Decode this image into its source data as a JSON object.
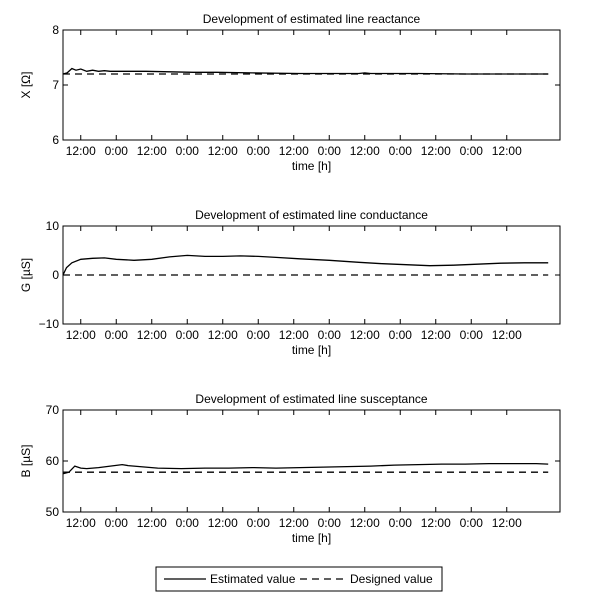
{
  "chart_data": [
    {
      "type": "line",
      "title": "Development of estimated line reactance",
      "xlabel": "time [h]",
      "ylabel": "X [Ω]",
      "ylim": [
        6,
        8
      ],
      "yticks": [
        "6",
        "7",
        "8"
      ],
      "xlim": [
        0,
        84
      ],
      "xticks": [
        {
          "x": 3,
          "label": "12:00"
        },
        {
          "x": 9,
          "label": "0:00"
        },
        {
          "x": 15,
          "label": "12:00"
        },
        {
          "x": 21,
          "label": "0:00"
        },
        {
          "x": 27,
          "label": "12:00"
        },
        {
          "x": 33,
          "label": "0:00"
        },
        {
          "x": 39,
          "label": "12:00"
        },
        {
          "x": 45,
          "label": "0:00"
        },
        {
          "x": 51,
          "label": "12:00"
        },
        {
          "x": 57,
          "label": "0:00"
        },
        {
          "x": 63,
          "label": "12:00"
        },
        {
          "x": 69,
          "label": "0:00"
        },
        {
          "x": 75,
          "label": "12:00"
        }
      ],
      "series": [
        {
          "name": "Estimated value",
          "style": "solid",
          "points": [
            [
              0,
              7.2
            ],
            [
              0.7,
              7.22
            ],
            [
              1.5,
              7.3
            ],
            [
              2.2,
              7.27
            ],
            [
              3,
              7.29
            ],
            [
              4,
              7.25
            ],
            [
              5,
              7.27
            ],
            [
              6,
              7.25
            ],
            [
              7,
              7.26
            ],
            [
              8,
              7.25
            ],
            [
              10,
              7.25
            ],
            [
              14,
              7.25
            ],
            [
              18,
              7.24
            ],
            [
              22,
              7.23
            ],
            [
              26,
              7.23
            ],
            [
              32,
              7.22
            ],
            [
              40,
              7.21
            ],
            [
              46,
              7.21
            ],
            [
              50,
              7.21
            ],
            [
              51,
              7.22
            ],
            [
              52,
              7.21
            ],
            [
              60,
              7.21
            ],
            [
              68,
              7.2
            ],
            [
              76,
              7.2
            ],
            [
              82,
              7.2
            ]
          ]
        },
        {
          "name": "Designed value",
          "style": "dashed",
          "points": [
            [
              0,
              7.2
            ],
            [
              82,
              7.2
            ]
          ]
        }
      ]
    },
    {
      "type": "line",
      "title": "Development of estimated line conductance",
      "xlabel": "time [h]",
      "ylabel": "G [µS]",
      "ylim": [
        -10,
        10
      ],
      "yticks": [
        "−10",
        "0",
        "10"
      ],
      "xlim": [
        0,
        84
      ],
      "xticks": [
        {
          "x": 3,
          "label": "12:00"
        },
        {
          "x": 9,
          "label": "0:00"
        },
        {
          "x": 15,
          "label": "12:00"
        },
        {
          "x": 21,
          "label": "0:00"
        },
        {
          "x": 27,
          "label": "12:00"
        },
        {
          "x": 33,
          "label": "0:00"
        },
        {
          "x": 39,
          "label": "12:00"
        },
        {
          "x": 45,
          "label": "0:00"
        },
        {
          "x": 51,
          "label": "12:00"
        },
        {
          "x": 57,
          "label": "0:00"
        },
        {
          "x": 63,
          "label": "12:00"
        },
        {
          "x": 69,
          "label": "0:00"
        },
        {
          "x": 75,
          "label": "12:00"
        }
      ],
      "series": [
        {
          "name": "Estimated value",
          "style": "solid",
          "points": [
            [
              0,
              0
            ],
            [
              0.6,
              1.5
            ],
            [
              1.5,
              2.5
            ],
            [
              3,
              3.2
            ],
            [
              5,
              3.4
            ],
            [
              7,
              3.5
            ],
            [
              9,
              3.2
            ],
            [
              12,
              3.0
            ],
            [
              15,
              3.2
            ],
            [
              18,
              3.7
            ],
            [
              21,
              4.0
            ],
            [
              24,
              3.8
            ],
            [
              27,
              3.8
            ],
            [
              30,
              3.9
            ],
            [
              33,
              3.8
            ],
            [
              36,
              3.6
            ],
            [
              40,
              3.3
            ],
            [
              45,
              3.0
            ],
            [
              50,
              2.6
            ],
            [
              54,
              2.3
            ],
            [
              58,
              2.1
            ],
            [
              62,
              1.9
            ],
            [
              66,
              2.0
            ],
            [
              70,
              2.2
            ],
            [
              74,
              2.4
            ],
            [
              78,
              2.5
            ],
            [
              82,
              2.5
            ]
          ]
        },
        {
          "name": "Designed value",
          "style": "dashed",
          "points": [
            [
              0,
              0
            ],
            [
              82,
              0
            ]
          ]
        }
      ]
    },
    {
      "type": "line",
      "title": "Development of estimated line susceptance",
      "xlabel": "time [h]",
      "ylabel": "B [µS]",
      "ylim": [
        50,
        70
      ],
      "yticks": [
        "50",
        "60",
        "70"
      ],
      "xlim": [
        0,
        84
      ],
      "xticks": [
        {
          "x": 3,
          "label": "12:00"
        },
        {
          "x": 9,
          "label": "0:00"
        },
        {
          "x": 15,
          "label": "12:00"
        },
        {
          "x": 21,
          "label": "0:00"
        },
        {
          "x": 27,
          "label": "12:00"
        },
        {
          "x": 33,
          "label": "0:00"
        },
        {
          "x": 39,
          "label": "12:00"
        },
        {
          "x": 45,
          "label": "0:00"
        },
        {
          "x": 51,
          "label": "12:00"
        },
        {
          "x": 57,
          "label": "0:00"
        },
        {
          "x": 63,
          "label": "12:00"
        },
        {
          "x": 69,
          "label": "0:00"
        },
        {
          "x": 75,
          "label": "12:00"
        }
      ],
      "series": [
        {
          "name": "Estimated value",
          "style": "solid",
          "points": [
            [
              0,
              57.5
            ],
            [
              1,
              57.8
            ],
            [
              2,
              59.0
            ],
            [
              3,
              58.6
            ],
            [
              4,
              58.5
            ],
            [
              6,
              58.7
            ],
            [
              8,
              59.0
            ],
            [
              10,
              59.3
            ],
            [
              11,
              59.1
            ],
            [
              13,
              58.9
            ],
            [
              16,
              58.6
            ],
            [
              20,
              58.5
            ],
            [
              24,
              58.6
            ],
            [
              28,
              58.6
            ],
            [
              32,
              58.7
            ],
            [
              36,
              58.6
            ],
            [
              40,
              58.7
            ],
            [
              44,
              58.8
            ],
            [
              48,
              58.9
            ],
            [
              52,
              59.0
            ],
            [
              56,
              59.2
            ],
            [
              60,
              59.3
            ],
            [
              64,
              59.4
            ],
            [
              68,
              59.4
            ],
            [
              72,
              59.5
            ],
            [
              76,
              59.5
            ],
            [
              80,
              59.5
            ],
            [
              82,
              59.4
            ]
          ]
        },
        {
          "name": "Designed value",
          "style": "dashed",
          "points": [
            [
              0,
              57.8
            ],
            [
              82,
              57.8
            ]
          ]
        }
      ]
    }
  ],
  "legend": {
    "position": "bottom-center",
    "entries": [
      {
        "label": "Estimated value",
        "style": "solid"
      },
      {
        "label": "Designed value",
        "style": "dashed"
      }
    ]
  }
}
